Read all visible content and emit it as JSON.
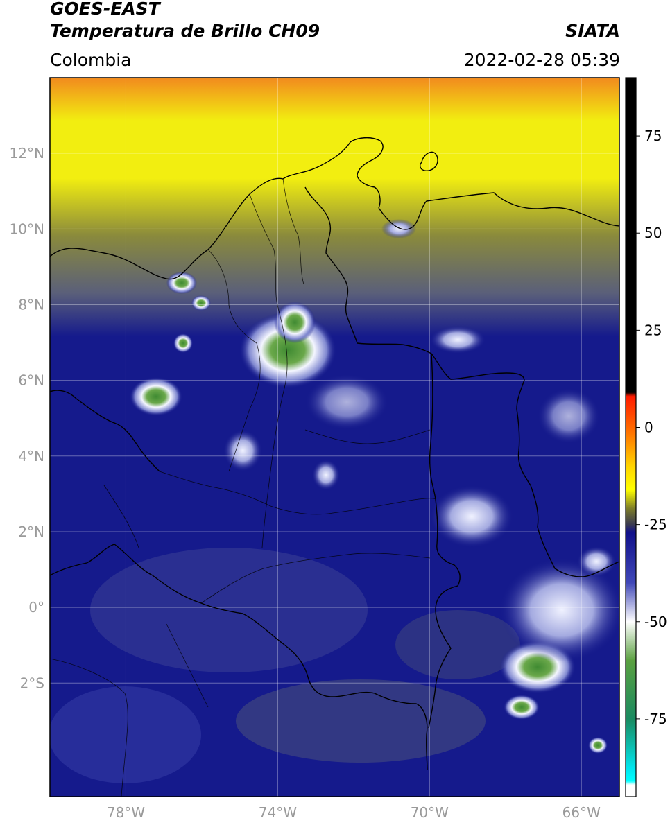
{
  "header": {
    "title_line1": "GOES-EAST",
    "title_line2": "Temperatura de Brillo CH09",
    "region": "Colombia",
    "org": "SIATA",
    "datetime": "2022-02-28 05:39"
  },
  "map": {
    "lon_range": [
      -80,
      -65
    ],
    "lat_range": [
      -5,
      14
    ],
    "lat_ticks": [
      {
        "value": 12,
        "label": "12°N"
      },
      {
        "value": 10,
        "label": "10°N"
      },
      {
        "value": 8,
        "label": "8°N"
      },
      {
        "value": 6,
        "label": "6°N"
      },
      {
        "value": 4,
        "label": "4°N"
      },
      {
        "value": 2,
        "label": "2°N"
      },
      {
        "value": 0,
        "label": "0°"
      },
      {
        "value": -2,
        "label": "2°S"
      }
    ],
    "lon_ticks": [
      {
        "value": -78,
        "label": "78°W"
      },
      {
        "value": -74,
        "label": "74°W"
      },
      {
        "value": -70,
        "label": "70°W"
      },
      {
        "value": -66,
        "label": "66°W"
      }
    ],
    "colors": {
      "warm_orange": "#f28a1e",
      "yellow": "#f2ee10",
      "olive": "#8a8a3c",
      "grey_blue": "#5a5f7a",
      "navy": "#151a8c",
      "light": "#eef0ff",
      "green": "#4f9a3e"
    },
    "cold_cloud_areas": [
      {
        "name": "catatumbo-santander",
        "lon": -73.7,
        "lat": 7.0
      },
      {
        "name": "choco-coast",
        "lon": -77.3,
        "lat": 5.8
      },
      {
        "name": "uraba",
        "lon": -76.8,
        "lat": 8.4
      },
      {
        "name": "amazon-south",
        "lon": -67.0,
        "lat": -1.8
      },
      {
        "name": "orinoquia",
        "lon": -68.5,
        "lat": 2.5
      }
    ]
  },
  "colorbar": {
    "ticks": [
      {
        "value": 75,
        "label": "75"
      },
      {
        "value": 50,
        "label": "50"
      },
      {
        "value": 25,
        "label": "25"
      },
      {
        "value": 0,
        "label": "0"
      },
      {
        "value": -25,
        "label": "-25"
      },
      {
        "value": -50,
        "label": "-50"
      },
      {
        "value": -75,
        "label": "-75"
      }
    ],
    "range": [
      -95,
      90
    ],
    "stops": [
      {
        "value": 90,
        "color": "#000000"
      },
      {
        "value": 9,
        "color": "#000000"
      },
      {
        "value": 8,
        "color": "#ff1a00"
      },
      {
        "value": -2,
        "color": "#ff7a00"
      },
      {
        "value": -10,
        "color": "#ffd400"
      },
      {
        "value": -16,
        "color": "#ffff00"
      },
      {
        "value": -21,
        "color": "#7a7a2a"
      },
      {
        "value": -25,
        "color": "#3a3a50"
      },
      {
        "value": -27,
        "color": "#10108a"
      },
      {
        "value": -40,
        "color": "#4048b8"
      },
      {
        "value": -50,
        "color": "#ffffff"
      },
      {
        "value": -60,
        "color": "#5aa040"
      },
      {
        "value": -75,
        "color": "#1a8a60"
      },
      {
        "value": -88,
        "color": "#00e8f0"
      },
      {
        "value": -91,
        "color": "#00ffff"
      },
      {
        "value": -92,
        "color": "#ffffff"
      },
      {
        "value": -95,
        "color": "#ffffff"
      }
    ]
  }
}
